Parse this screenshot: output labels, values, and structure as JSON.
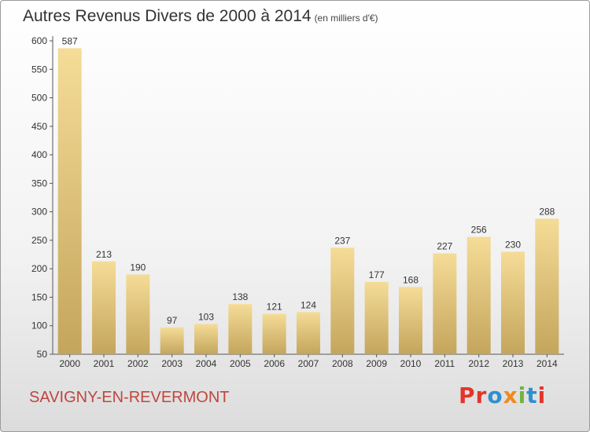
{
  "header": {
    "title": "Autres Revenus Divers de 2000 à 2014",
    "unit": "(en milliers d'€)"
  },
  "footer": {
    "commune": "SAVIGNY-EN-REVERMONT",
    "logo": "Proxiti"
  },
  "colors": {
    "bar_light": "#f5dc97",
    "bar_dark": "#c4a55c",
    "logo_letters": [
      "#e3352b",
      "#e3352b",
      "#2f8fd0",
      "#f08a1c",
      "#6fb43f",
      "#2f8fd0",
      "#e3352b"
    ]
  },
  "chart_data": {
    "type": "bar",
    "title": "Autres Revenus Divers de 2000 à 2014",
    "subtitle": "(en milliers d'€)",
    "xlabel": "",
    "ylabel": "",
    "categories": [
      "2000",
      "2001",
      "2002",
      "2003",
      "2004",
      "2005",
      "2006",
      "2007",
      "2008",
      "2009",
      "2010",
      "2011",
      "2012",
      "2013",
      "2014"
    ],
    "values": [
      587,
      213,
      190,
      97,
      103,
      138,
      121,
      124,
      237,
      177,
      168,
      227,
      256,
      230,
      288
    ],
    "ylim": [
      50,
      600
    ],
    "yticks": [
      50,
      100,
      150,
      200,
      250,
      300,
      350,
      400,
      450,
      500,
      550,
      600
    ],
    "grid": false,
    "legend": "none",
    "data_labels": true
  }
}
